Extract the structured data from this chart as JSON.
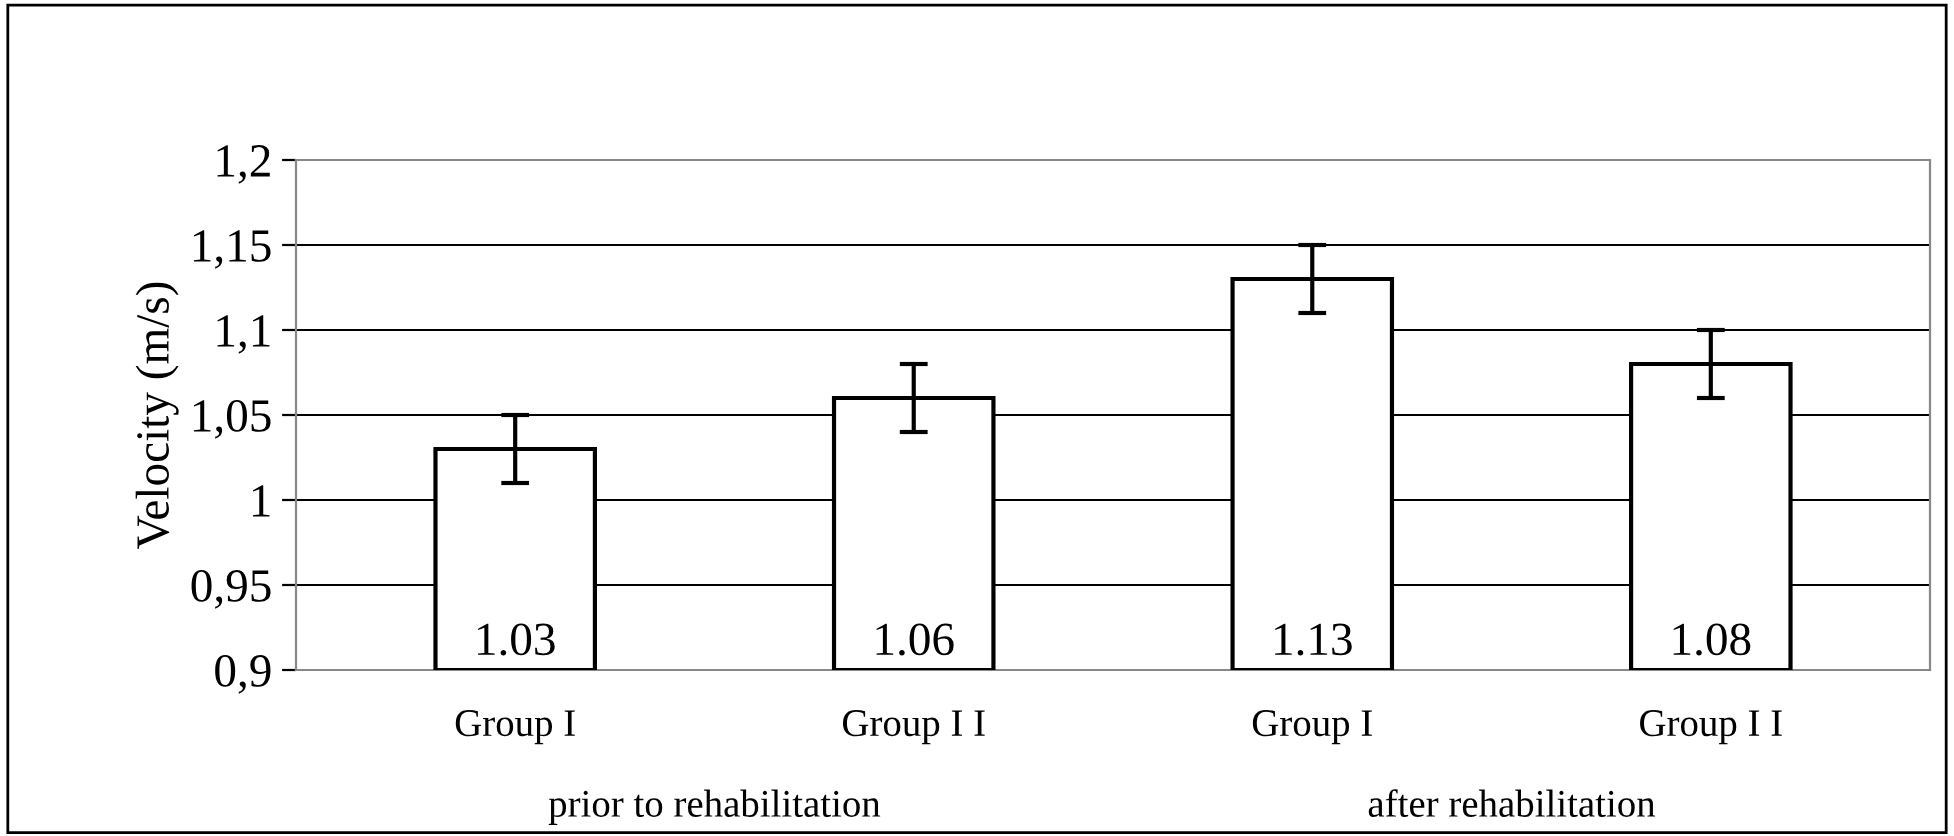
{
  "chart_data": {
    "type": "bar",
    "ylabel": "Velocity (m/s)",
    "categories": [
      "Group I",
      "Group I I",
      "Group I",
      "Group I I"
    ],
    "values": [
      1.03,
      1.06,
      1.13,
      1.08
    ],
    "errors": [
      0.02,
      0.02,
      0.02,
      0.02
    ],
    "color": "#ffffff",
    "data_labels": true,
    "ylim": [
      0.9,
      1.2
    ],
    "yticks": [
      {
        "value": 0.9,
        "label": "0,9"
      },
      {
        "value": 0.95,
        "label": "0,95"
      },
      {
        "value": 1.0,
        "label": "1"
      },
      {
        "value": 1.05,
        "label": "1,05"
      },
      {
        "value": 1.1,
        "label": "1,1"
      },
      {
        "value": 1.15,
        "label": "1,15"
      },
      {
        "value": 1.2,
        "label": "1,2"
      }
    ],
    "grid": "y",
    "annotations": [
      "prior to rehabilitation",
      "after rehabilitation"
    ]
  }
}
